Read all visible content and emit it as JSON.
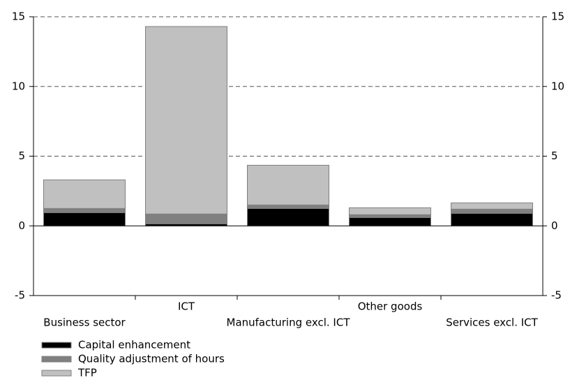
{
  "chart_data": {
    "type": "stacked_bar",
    "categories": [
      "Business sector",
      "ICT",
      "Manufacturing excl. ICT",
      "Other goods",
      "Services excl. ICT"
    ],
    "series": [
      {
        "name": "Capital enhancement",
        "color": "#000000",
        "values": [
          0.95,
          0.15,
          1.25,
          0.6,
          0.9
        ]
      },
      {
        "name": "Quality adjustment of hours",
        "color": "#808080",
        "values": [
          0.3,
          0.7,
          0.25,
          0.2,
          0.3
        ]
      },
      {
        "name": "TFP",
        "color": "#c0c0c0",
        "values": [
          2.05,
          13.45,
          2.85,
          0.5,
          0.45
        ]
      }
    ],
    "ylim": [
      -5,
      15
    ],
    "yticks": [
      -5,
      0,
      5,
      10,
      15
    ],
    "y2lim": [
      -5,
      15
    ],
    "y2ticks": [
      -5,
      0,
      5,
      10,
      15
    ],
    "grid": true,
    "legend": "bottom-left"
  }
}
